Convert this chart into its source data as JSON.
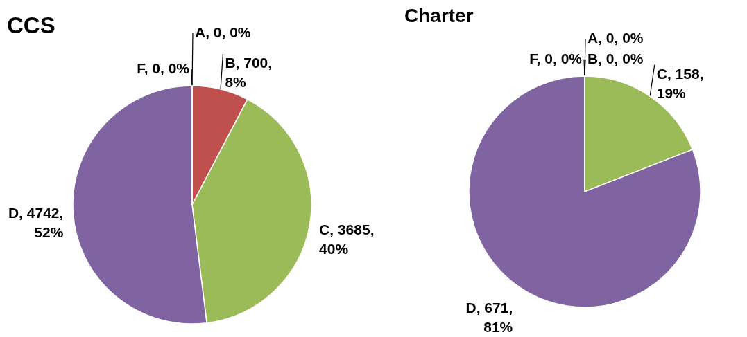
{
  "chart_data": [
    {
      "type": "pie",
      "title": "CCS",
      "categories": [
        "A",
        "B",
        "C",
        "D",
        "F"
      ],
      "values": [
        0,
        700,
        3685,
        4742,
        0
      ],
      "colors": [
        null,
        "#c0504d",
        "#9bbb59",
        "#8064a2",
        null
      ],
      "value_labels": [
        ", 0, 0%",
        ", 700, 8%",
        ", 3685, 40%",
        ", 4742, 52%",
        ", 0, 0%"
      ]
    },
    {
      "type": "pie",
      "title": "Charter",
      "categories": [
        "A",
        "B",
        "C",
        "D",
        "F"
      ],
      "values": [
        0,
        0,
        158,
        671,
        0
      ],
      "colors": [
        null,
        null,
        "#9bbb59",
        "#8064a2",
        null
      ],
      "value_labels": [
        ", 0, 0%",
        ", 0, 0%",
        ", 158, 19%",
        ", 671, 81%",
        ", 0, 0%"
      ]
    }
  ]
}
